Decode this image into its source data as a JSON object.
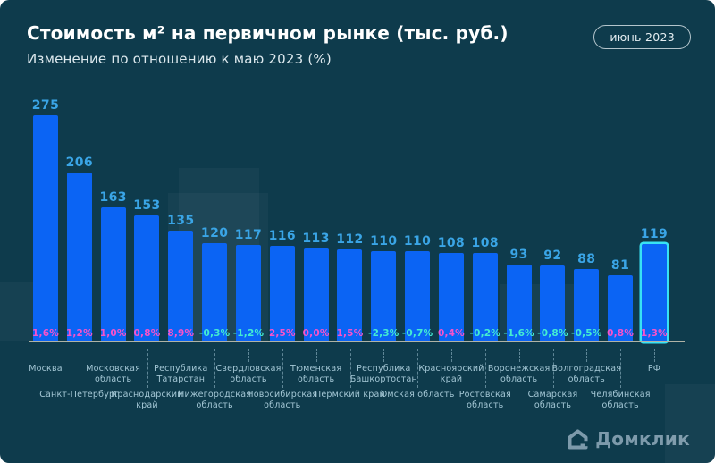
{
  "header": {
    "title": "Стоимость м² на первичном рынке (тыс. руб.)",
    "subtitle": "Изменение по отношению к маю 2023 (%)",
    "badge": "июнь 2023"
  },
  "footer": {
    "logo_icon": "domclick-house-icon",
    "logo_text": "Домклик"
  },
  "colors": {
    "background": "#0e3b4c",
    "bar": "#0b64f4",
    "value_label": "#3aa5e6",
    "pct_positive": "#f653cb",
    "pct_negative": "#43ecd2",
    "rf_outline": "#38e2f4",
    "axis_line": "#b0b3a6",
    "axis_label": "#a5c8d6"
  },
  "chart_data": {
    "type": "bar",
    "title": "Стоимость м² на первичном рынке (тыс. руб.)",
    "subtitle": "Изменение по отношению к маю 2023 (%)",
    "period_badge": "июнь 2023",
    "value_unit": "тыс. руб.",
    "categories": [
      "Москва",
      "Санкт-Петербург",
      "Московская область",
      "Краснодарский край",
      "Республика Татарстан",
      "Нижегородская область",
      "Свердловская область",
      "Новосибирская область",
      "Тюменская область",
      "Пермский край",
      "Республика Башкортостан",
      "Омская область",
      "Красноярский край",
      "Ростовская область",
      "Воронежская область",
      "Самарская область",
      "Волгоградская область",
      "Челябинская область",
      "РФ"
    ],
    "values": [
      275,
      206,
      163,
      153,
      135,
      120,
      117,
      116,
      113,
      112,
      110,
      110,
      108,
      108,
      93,
      92,
      88,
      81,
      119
    ],
    "pct_change": [
      "1,6%",
      "1,2%",
      "1,0%",
      "0,8%",
      "8,9%",
      "-0,3%",
      "-1,2%",
      "2,5%",
      "0,0%",
      "1,5%",
      "-2,3%",
      "-0,7%",
      "0,4%",
      "-0,2%",
      "-1,6%",
      "-0,8%",
      "-0,5%",
      "0,8%",
      "1,3%"
    ],
    "highlight_index": 18,
    "ylim": [
      0,
      290
    ],
    "grid": false,
    "legend": false,
    "bar_labels_position": "above",
    "pct_labels_position": "inside-bottom"
  }
}
